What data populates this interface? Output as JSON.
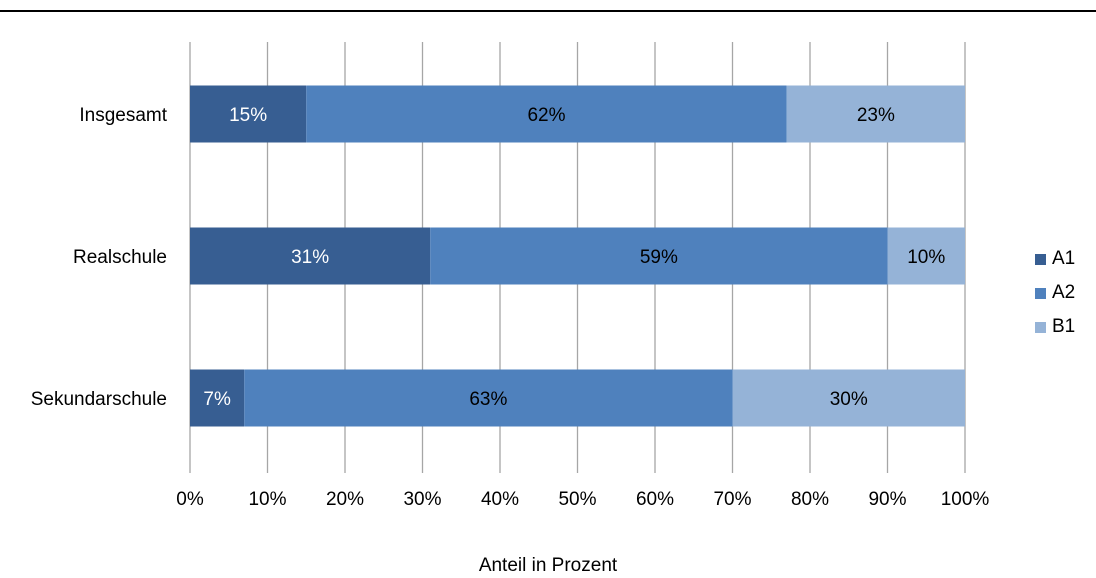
{
  "chart_data": {
    "type": "bar",
    "orientation": "horizontal",
    "stacked": true,
    "percent_stacked": true,
    "categories": [
      "Insgesamt",
      "Realschule",
      "Sekundarschule"
    ],
    "series": [
      {
        "name": "A1",
        "values": [
          15,
          31,
          7
        ],
        "color": "#375e92"
      },
      {
        "name": "A2",
        "values": [
          62,
          59,
          63
        ],
        "color": "#4f81bd"
      },
      {
        "name": "B1",
        "values": [
          23,
          10,
          30
        ],
        "color": "#95b3d7"
      }
    ],
    "data_labels": [
      [
        "15%",
        "62%",
        "23%"
      ],
      [
        "31%",
        "59%",
        "10%"
      ],
      [
        "7%",
        "63%",
        "30%"
      ]
    ],
    "xlabel": "Anteil in Prozent",
    "xlim": [
      0,
      100
    ],
    "xticks": [
      "0%",
      "10%",
      "20%",
      "30%",
      "40%",
      "50%",
      "60%",
      "70%",
      "80%",
      "90%",
      "100%"
    ],
    "grid": "vertical",
    "legend_position": "right"
  }
}
